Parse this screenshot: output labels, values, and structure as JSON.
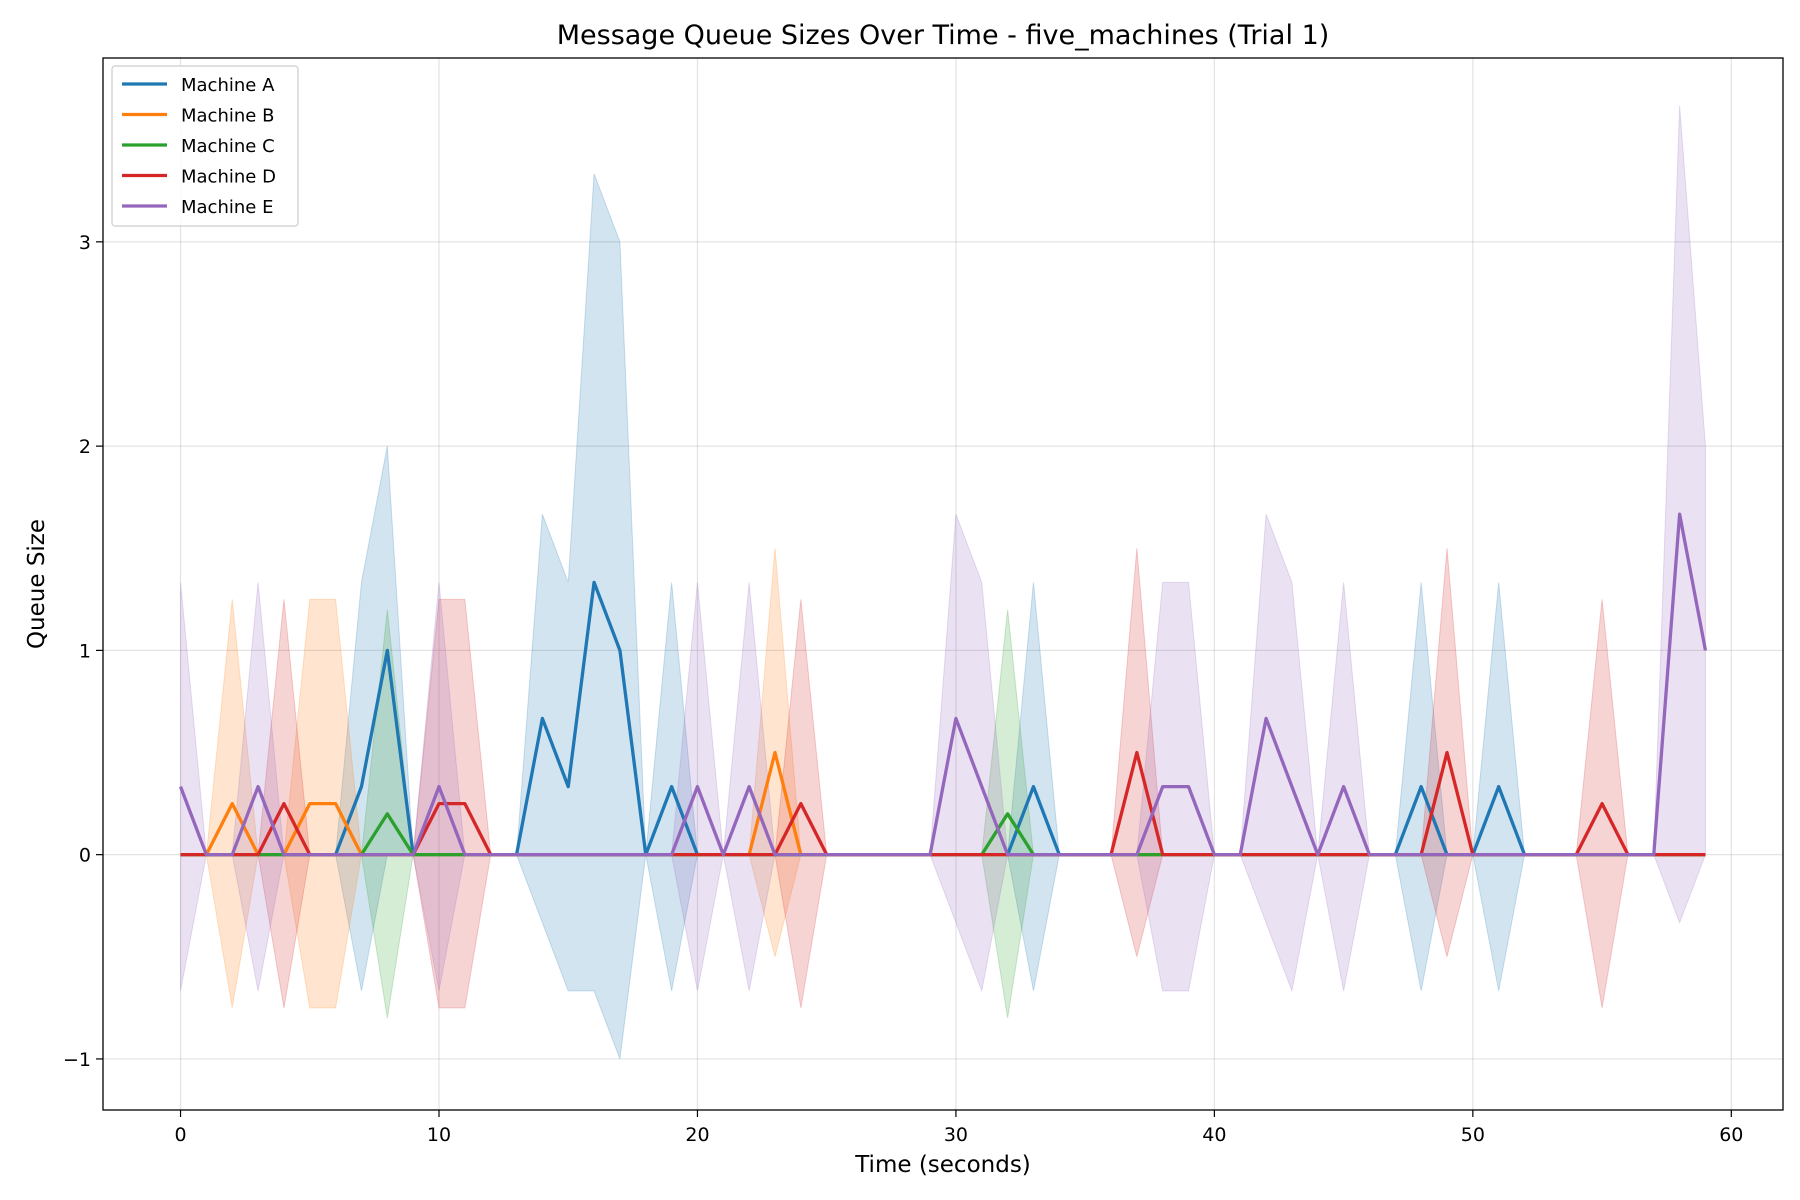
{
  "chart_data": {
    "type": "line",
    "title": "Message Queue Sizes Over Time - five_machines (Trial 1)",
    "xlabel": "Time (seconds)",
    "ylabel": "Queue Size",
    "xlim": [
      -3,
      62
    ],
    "ylim": [
      -1.25,
      3.9
    ],
    "xticks": [
      0,
      10,
      20,
      30,
      40,
      50,
      60
    ],
    "yticks": [
      -1,
      0,
      1,
      2,
      3
    ],
    "grid": true,
    "legend_position": "top-left",
    "x": [
      0,
      1,
      2,
      3,
      4,
      5,
      6,
      7,
      8,
      9,
      10,
      11,
      12,
      13,
      14,
      15,
      16,
      17,
      18,
      19,
      20,
      21,
      22,
      23,
      24,
      25,
      26,
      27,
      28,
      29,
      30,
      31,
      32,
      33,
      34,
      35,
      36,
      37,
      38,
      39,
      40,
      41,
      42,
      43,
      44,
      45,
      46,
      47,
      48,
      49,
      50,
      51,
      52,
      53,
      54,
      55,
      56,
      57,
      58,
      59
    ],
    "series": [
      {
        "name": "Machine A",
        "color": "#1f77b4",
        "values": [
          0,
          0,
          0,
          0,
          0,
          0,
          0,
          0.333,
          1,
          0,
          0,
          0,
          0,
          0,
          0.667,
          0.333,
          1.333,
          1,
          0,
          0.333,
          0,
          0,
          0,
          0,
          0,
          0,
          0,
          0,
          0,
          0,
          0,
          0,
          0,
          0.333,
          0,
          0,
          0,
          0,
          0,
          0,
          0,
          0,
          0,
          0,
          0,
          0,
          0,
          0,
          0.333,
          0,
          0,
          0.333,
          0,
          0,
          0,
          0,
          0,
          0,
          0,
          0
        ],
        "upper": [
          0,
          0,
          0,
          0,
          0,
          0,
          0,
          1.333,
          2,
          0,
          0,
          0,
          0,
          0,
          1.667,
          1.333,
          3.333,
          3,
          0,
          1.333,
          0,
          0,
          0,
          0,
          0,
          0,
          0,
          0,
          0,
          0,
          0,
          0,
          0,
          1.333,
          0,
          0,
          0,
          0,
          0,
          0,
          0,
          0,
          0,
          0,
          0,
          0,
          0,
          0,
          1.333,
          0,
          0,
          1.333,
          0,
          0,
          0,
          0,
          0,
          0,
          0,
          0
        ],
        "lower": [
          0,
          0,
          0,
          0,
          0,
          0,
          0,
          -0.667,
          0,
          0,
          0,
          0,
          0,
          0,
          -0.333,
          -0.667,
          -0.667,
          -1,
          0,
          -0.667,
          0,
          0,
          0,
          0,
          0,
          0,
          0,
          0,
          0,
          0,
          0,
          0,
          0,
          -0.667,
          0,
          0,
          0,
          0,
          0,
          0,
          0,
          0,
          0,
          0,
          0,
          0,
          0,
          0,
          -0.667,
          0,
          0,
          -0.667,
          0,
          0,
          0,
          0,
          0,
          0,
          0,
          0
        ]
      },
      {
        "name": "Machine B",
        "color": "#ff7f0e",
        "values": [
          0,
          0,
          0.25,
          0,
          0,
          0.25,
          0.25,
          0,
          0,
          0,
          0,
          0,
          0,
          0,
          0,
          0,
          0,
          0,
          0,
          0,
          0,
          0,
          0,
          0.5,
          0,
          0,
          0,
          0,
          0,
          0,
          0,
          0,
          0,
          0,
          0,
          0,
          0,
          0,
          0,
          0,
          0,
          0,
          0,
          0,
          0,
          0,
          0,
          0,
          0,
          0,
          0,
          0,
          0,
          0,
          0,
          0,
          0,
          0,
          0,
          0
        ],
        "upper": [
          0,
          0,
          1.25,
          0,
          0,
          1.25,
          1.25,
          0,
          0,
          0,
          0,
          0,
          0,
          0,
          0,
          0,
          0,
          0,
          0,
          0,
          0,
          0,
          0,
          1.5,
          0,
          0,
          0,
          0,
          0,
          0,
          0,
          0,
          0,
          0,
          0,
          0,
          0,
          0,
          0,
          0,
          0,
          0,
          0,
          0,
          0,
          0,
          0,
          0,
          0,
          0,
          0,
          0,
          0,
          0,
          0,
          0,
          0,
          0,
          0,
          0
        ],
        "lower": [
          0,
          0,
          -0.75,
          0,
          0,
          -0.75,
          -0.75,
          0,
          0,
          0,
          0,
          0,
          0,
          0,
          0,
          0,
          0,
          0,
          0,
          0,
          0,
          0,
          0,
          -0.5,
          0,
          0,
          0,
          0,
          0,
          0,
          0,
          0,
          0,
          0,
          0,
          0,
          0,
          0,
          0,
          0,
          0,
          0,
          0,
          0,
          0,
          0,
          0,
          0,
          0,
          0,
          0,
          0,
          0,
          0,
          0,
          0,
          0,
          0,
          0,
          0
        ]
      },
      {
        "name": "Machine C",
        "color": "#2ca02c",
        "values": [
          0,
          0,
          0,
          0,
          0,
          0,
          0,
          0,
          0.2,
          0,
          0,
          0,
          0,
          0,
          0,
          0,
          0,
          0,
          0,
          0,
          0,
          0,
          0,
          0,
          0,
          0,
          0,
          0,
          0,
          0,
          0,
          0,
          0.2,
          0,
          0,
          0,
          0,
          0,
          0,
          0,
          0,
          0,
          0,
          0,
          0,
          0,
          0,
          0,
          0,
          0,
          0,
          0,
          0,
          0,
          0,
          0,
          0,
          0,
          0,
          0
        ],
        "upper": [
          0,
          0,
          0,
          0,
          0,
          0,
          0,
          0,
          1.2,
          0,
          0,
          0,
          0,
          0,
          0,
          0,
          0,
          0,
          0,
          0,
          0,
          0,
          0,
          0,
          0,
          0,
          0,
          0,
          0,
          0,
          0,
          0,
          1.2,
          0,
          0,
          0,
          0,
          0,
          0,
          0,
          0,
          0,
          0,
          0,
          0,
          0,
          0,
          0,
          0,
          0,
          0,
          0,
          0,
          0,
          0,
          0,
          0,
          0,
          0,
          0
        ],
        "lower": [
          0,
          0,
          0,
          0,
          0,
          0,
          0,
          0,
          -0.8,
          0,
          0,
          0,
          0,
          0,
          0,
          0,
          0,
          0,
          0,
          0,
          0,
          0,
          0,
          0,
          0,
          0,
          0,
          0,
          0,
          0,
          0,
          0,
          -0.8,
          0,
          0,
          0,
          0,
          0,
          0,
          0,
          0,
          0,
          0,
          0,
          0,
          0,
          0,
          0,
          0,
          0,
          0,
          0,
          0,
          0,
          0,
          0,
          0,
          0,
          0,
          0
        ]
      },
      {
        "name": "Machine D",
        "color": "#d62728",
        "values": [
          0,
          0,
          0,
          0,
          0.25,
          0,
          0,
          0,
          0,
          0,
          0.25,
          0.25,
          0,
          0,
          0,
          0,
          0,
          0,
          0,
          0,
          0,
          0,
          0,
          0,
          0.25,
          0,
          0,
          0,
          0,
          0,
          0,
          0,
          0,
          0,
          0,
          0,
          0,
          0.5,
          0,
          0,
          0,
          0,
          0,
          0,
          0,
          0,
          0,
          0,
          0,
          0.5,
          0,
          0,
          0,
          0,
          0,
          0.25,
          0,
          0,
          0,
          0
        ],
        "upper": [
          0,
          0,
          0,
          0,
          1.25,
          0,
          0,
          0,
          0,
          0,
          1.25,
          1.25,
          0,
          0,
          0,
          0,
          0,
          0,
          0,
          0,
          0,
          0,
          0,
          0,
          1.25,
          0,
          0,
          0,
          0,
          0,
          0,
          0,
          0,
          0,
          0,
          0,
          0,
          1.5,
          0,
          0,
          0,
          0,
          0,
          0,
          0,
          0,
          0,
          0,
          0,
          1.5,
          0,
          0,
          0,
          0,
          0,
          1.25,
          0,
          0,
          0,
          0
        ],
        "lower": [
          0,
          0,
          0,
          0,
          -0.75,
          0,
          0,
          0,
          0,
          0,
          -0.75,
          -0.75,
          0,
          0,
          0,
          0,
          0,
          0,
          0,
          0,
          0,
          0,
          0,
          0,
          -0.75,
          0,
          0,
          0,
          0,
          0,
          0,
          0,
          0,
          0,
          0,
          0,
          0,
          -0.5,
          0,
          0,
          0,
          0,
          0,
          0,
          0,
          0,
          0,
          0,
          0,
          -0.5,
          0,
          0,
          0,
          0,
          0,
          -0.75,
          0,
          0,
          0,
          0
        ]
      },
      {
        "name": "Machine E",
        "color": "#9467bd",
        "values": [
          0.333,
          0,
          0,
          0.333,
          0,
          0,
          0,
          0,
          0,
          0,
          0.333,
          0,
          0,
          0,
          0,
          0,
          0,
          0,
          0,
          0,
          0.333,
          0,
          0.333,
          0,
          0,
          0,
          0,
          0,
          0,
          0,
          0.667,
          0.333,
          0,
          0,
          0,
          0,
          0,
          0,
          0.333,
          0.333,
          0,
          0,
          0.667,
          0.333,
          0,
          0.333,
          0,
          0,
          0,
          0,
          0,
          0,
          0,
          0,
          0,
          0,
          0,
          0,
          1.667,
          1
        ],
        "upper": [
          1.333,
          0,
          0,
          1.333,
          0,
          0,
          0,
          0,
          0,
          0,
          1.333,
          0,
          0,
          0,
          0,
          0,
          0,
          0,
          0,
          0,
          1.333,
          0,
          1.333,
          0,
          0,
          0,
          0,
          0,
          0,
          0,
          1.667,
          1.333,
          0,
          0,
          0,
          0,
          0,
          0,
          1.333,
          1.333,
          0,
          0,
          1.667,
          1.333,
          0,
          1.333,
          0,
          0,
          0,
          0,
          0,
          0,
          0,
          0,
          0,
          0,
          0,
          0,
          3.667,
          2
        ],
        "lower": [
          -0.667,
          0,
          0,
          -0.667,
          0,
          0,
          0,
          0,
          0,
          0,
          -0.667,
          0,
          0,
          0,
          0,
          0,
          0,
          0,
          0,
          0,
          -0.667,
          0,
          -0.667,
          0,
          0,
          0,
          0,
          0,
          0,
          0,
          -0.333,
          -0.667,
          0,
          0,
          0,
          0,
          0,
          0,
          -0.667,
          -0.667,
          0,
          0,
          -0.333,
          -0.667,
          0,
          -0.667,
          0,
          0,
          0,
          0,
          0,
          0,
          0,
          0,
          0,
          0,
          0,
          0,
          -0.333,
          0
        ]
      }
    ]
  }
}
